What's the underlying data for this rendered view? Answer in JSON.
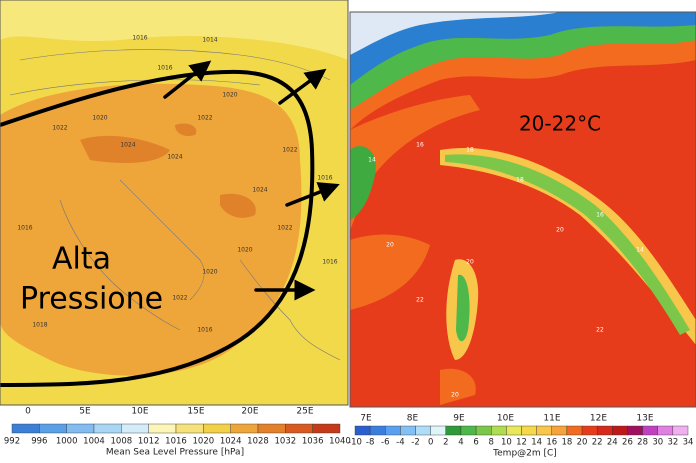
{
  "left_map": {
    "annotation_lines": [
      "Alta",
      "Pressione"
    ],
    "isobar_labels": [
      "1016",
      "1014",
      "1016",
      "1020",
      "1022",
      "1020",
      "1022",
      "1024",
      "1024",
      "1024",
      "1022",
      "1016",
      "1022",
      "1020",
      "1020",
      "1016",
      "1022",
      "1018",
      "1016",
      "1016"
    ],
    "longitude_labels": [
      "0",
      "5E",
      "10E",
      "15E",
      "20E",
      "25E"
    ],
    "colorbar_labels": [
      992,
      996,
      1000,
      1004,
      1008,
      1012,
      1016,
      1020,
      1024,
      1028,
      1032,
      1036,
      1040
    ],
    "colorbar_title": "Mean Sea Level Pressure [hPa]"
  },
  "right_map": {
    "annotation": "20-22°C",
    "temperature_labels": [
      "14",
      "16",
      "18",
      "20",
      "22",
      "18",
      "20",
      "16",
      "14",
      "20",
      "22",
      "20"
    ],
    "longitude_labels": [
      "7E",
      "8E",
      "9E",
      "10E",
      "11E",
      "12E",
      "13E"
    ],
    "colorbar_labels": [
      -10,
      -8,
      -6,
      -4,
      -2,
      0,
      2,
      4,
      6,
      8,
      10,
      12,
      14,
      16,
      18,
      20,
      22,
      24,
      26,
      28,
      30,
      32,
      34
    ],
    "colorbar_title": "Temp@2m [C]"
  }
}
